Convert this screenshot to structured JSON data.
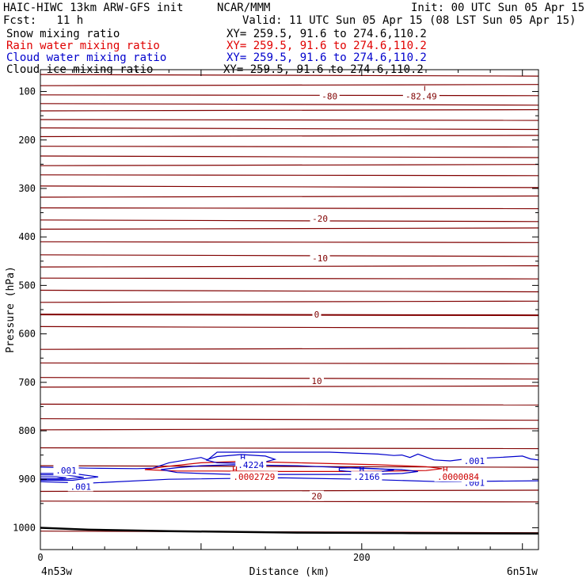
{
  "header": {
    "title_left": "HAIC-HIWC 13km ARW-GFS init",
    "org": "NCAR/MMM",
    "init": "Init: 00 UTC Sun 05 Apr 15",
    "fcst": "Fcst:   11 h",
    "valid": "Valid: 11 UTC Sun 05 Apr 15 (08 LST Sun 05 Apr 15)"
  },
  "legend": [
    {
      "label": "Snow mixing ratio",
      "xy": "XY= 259.5, 91.6 to 274.6,110.2",
      "color": "#000000"
    },
    {
      "label": "Rain water mixing ratio",
      "xy": "XY= 259.5, 91.6 to 274.6,110.2",
      "color": "#e00000"
    },
    {
      "label": "Cloud water mixing ratio",
      "xy": "XY= 259.5, 91.6 to 274.6,110.2",
      "color": "#0000cc"
    },
    {
      "label": "Cloud ice mixing ratio",
      "xy": "XY= 259.5, 91.6 to 274.6,110.2",
      "color": "#000000"
    }
  ],
  "chart_data": {
    "type": "line",
    "xlabel": "Distance (km)",
    "ylabel": "Pressure (hPa)",
    "xlim": [
      0,
      310
    ],
    "ylim": [
      1045,
      55
    ],
    "y_scale": "reversed",
    "xticks": [
      0,
      200
    ],
    "yticks": [
      100,
      200,
      300,
      400,
      500,
      600,
      700,
      800,
      900,
      1000
    ],
    "x_endpoints": {
      "left": "4n53w",
      "right": "6n51w"
    },
    "colors": {
      "temperature": "#800000",
      "cloud_water": "#0000cc",
      "rain": "#cc0000",
      "terrain": "#000000"
    },
    "temperature_isotherm_levels": [
      65,
      88,
      107,
      125,
      140,
      158,
      175,
      193,
      213,
      233,
      253,
      272,
      295,
      318,
      340,
      365,
      384,
      410,
      437,
      462,
      485,
      510,
      535,
      560,
      585,
      632,
      660,
      690,
      710,
      745,
      775,
      798,
      835,
      872,
      925,
      945,
      1007
    ],
    "contour_labels": [
      {
        "text": "-80",
        "x": 180,
        "p": 110,
        "color": "#800000"
      },
      {
        "text": "-20",
        "x": 174,
        "p": 362,
        "color": "#800000"
      },
      {
        "text": "-10",
        "x": 174,
        "p": 444,
        "color": "#800000"
      },
      {
        "text": "0",
        "x": 172,
        "p": 560,
        "color": "#800000"
      },
      {
        "text": "10",
        "x": 172,
        "p": 697,
        "color": "#800000"
      },
      {
        "text": "20",
        "x": 172,
        "p": 935,
        "color": "#800000"
      },
      {
        "text": ".001",
        "x": 16,
        "p": 882,
        "color": "#0000cc"
      },
      {
        "text": ".001",
        "x": 25,
        "p": 915,
        "color": "#0000cc"
      },
      {
        "text": ".001",
        "x": 270,
        "p": 862,
        "color": "#0000cc"
      },
      {
        "text": ".001",
        "x": 270,
        "p": 907,
        "color": "#0000cc"
      }
    ],
    "extrema": [
      {
        "kind": "L",
        "value": "-82.49",
        "x": 240,
        "p": 95,
        "label_x": 237,
        "label_p": 110,
        "color": "#800000"
      },
      {
        "kind": "H",
        "value": ".4224",
        "x": 126,
        "p": 855,
        "label_x": 131,
        "label_p": 870,
        "color": "#0000cc"
      },
      {
        "kind": "H",
        "value": ".0002729",
        "x": 121,
        "p": 880,
        "label_x": 133,
        "label_p": 895,
        "color": "#cc0000"
      },
      {
        "kind": "H",
        "value": ".2166",
        "x": 200,
        "p": 880,
        "label_x": 203,
        "label_p": 895,
        "color": "#0000cc"
      },
      {
        "kind": "H",
        "value": ".0000084",
        "x": 252,
        "p": 880,
        "label_x": 260,
        "label_p": 895,
        "color": "#cc0000"
      }
    ],
    "cloud_water_contours": [
      {
        "level": ".001",
        "points": [
          [
            0,
            875
          ],
          [
            30,
            877
          ],
          [
            60,
            878
          ],
          [
            70,
            877
          ],
          [
            80,
            866
          ],
          [
            100,
            855
          ],
          [
            104,
            860
          ],
          [
            110,
            844
          ],
          [
            180,
            844
          ],
          [
            210,
            848
          ],
          [
            220,
            851
          ],
          [
            225,
            850
          ],
          [
            230,
            855
          ],
          [
            235,
            848
          ],
          [
            245,
            860
          ],
          [
            255,
            862
          ],
          [
            265,
            858
          ],
          [
            285,
            855
          ],
          [
            300,
            852
          ],
          [
            305,
            858
          ],
          [
            310,
            860
          ]
        ]
      },
      {
        "level": ".001",
        "points": [
          [
            0,
            905
          ],
          [
            30,
            908
          ],
          [
            80,
            900
          ],
          [
            150,
            897
          ],
          [
            200,
            900
          ],
          [
            250,
            905
          ],
          [
            310,
            903
          ]
        ]
      },
      {
        "level": ".001",
        "points": [
          [
            0,
            888
          ],
          [
            20,
            888
          ],
          [
            36,
            895
          ],
          [
            20,
            902
          ],
          [
            0,
            902
          ]
        ]
      },
      {
        "level": ".001",
        "points": [
          [
            0,
            895
          ],
          [
            10,
            895
          ],
          [
            16,
            897
          ],
          [
            10,
            899
          ],
          [
            0,
            899
          ]
        ]
      },
      {
        "level": ".001",
        "points": [
          [
            0,
            891
          ],
          [
            15,
            891
          ],
          [
            27,
            896
          ],
          [
            15,
            900
          ],
          [
            0,
            900
          ]
        ]
      },
      {
        "level": ".1",
        "points": [
          [
            75,
            880
          ],
          [
            85,
            876
          ],
          [
            100,
            872
          ],
          [
            120,
            870
          ],
          [
            160,
            872
          ],
          [
            190,
            876
          ],
          [
            205,
            878
          ],
          [
            225,
            880
          ],
          [
            235,
            884
          ],
          [
            225,
            888
          ],
          [
            205,
            890
          ],
          [
            180,
            890
          ],
          [
            160,
            890
          ],
          [
            120,
            890
          ],
          [
            100,
            888
          ],
          [
            85,
            886
          ],
          [
            75,
            880
          ]
        ]
      },
      {
        "level": ".3",
        "points": [
          [
            103,
            860
          ],
          [
            110,
            853
          ],
          [
            125,
            849
          ],
          [
            140,
            852
          ],
          [
            146,
            859
          ],
          [
            140,
            864
          ],
          [
            125,
            867
          ],
          [
            110,
            866
          ],
          [
            103,
            860
          ]
        ]
      },
      {
        "level": ".2",
        "points": [
          [
            186,
            877
          ],
          [
            196,
            876
          ],
          [
            210,
            878
          ],
          [
            220,
            881
          ],
          [
            212,
            884
          ],
          [
            196,
            885
          ],
          [
            186,
            882
          ],
          [
            186,
            877
          ]
        ]
      }
    ],
    "rain_contours": [
      {
        "level": ".0001",
        "points": [
          [
            65,
            880
          ],
          [
            80,
            873
          ],
          [
            100,
            866
          ],
          [
            125,
            863
          ],
          [
            160,
            866
          ],
          [
            210,
            870
          ],
          [
            240,
            874
          ],
          [
            250,
            878
          ],
          [
            240,
            882
          ],
          [
            200,
            884
          ],
          [
            150,
            884
          ],
          [
            110,
            883
          ],
          [
            85,
            883
          ],
          [
            65,
            880
          ]
        ]
      }
    ],
    "terrain": [
      [
        0,
        1000
      ],
      [
        30,
        1004
      ],
      [
        80,
        1007
      ],
      [
        160,
        1010
      ],
      [
        230,
        1011
      ],
      [
        310,
        1012
      ]
    ]
  }
}
